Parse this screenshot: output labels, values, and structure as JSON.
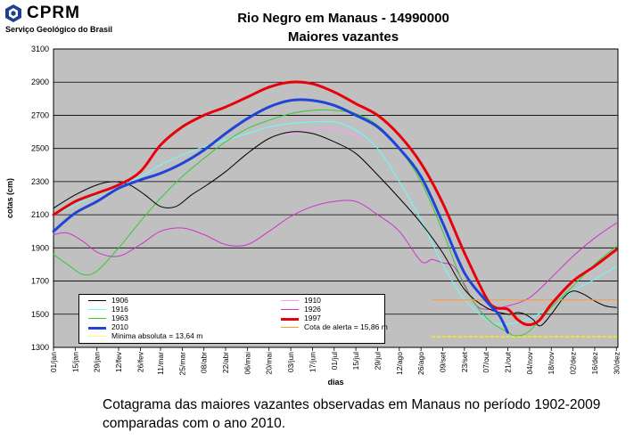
{
  "logo": {
    "name": "CPRM",
    "subtitle": "Serviço Geológico do Brasil"
  },
  "caption": "Cotagrama das maiores vazantes observadas em Manaus no período 1902-2009 comparadas com o ano 2010.",
  "chart_data": {
    "type": "line",
    "title": "Rio Negro em Manaus - 14990000",
    "subtitle": "Maiores vazantes",
    "xlabel": "dias",
    "ylabel": "cotas (cm)",
    "ylim": [
      1300,
      3100
    ],
    "yticks": [
      1300,
      1500,
      1700,
      1900,
      2100,
      2300,
      2500,
      2700,
      2900,
      3100
    ],
    "xlim": [
      1,
      365
    ],
    "xticks": [
      {
        "day": 1,
        "label": "01/jan"
      },
      {
        "day": 15,
        "label": "15/jan"
      },
      {
        "day": 29,
        "label": "29/jan"
      },
      {
        "day": 43,
        "label": "12/fev"
      },
      {
        "day": 57,
        "label": "26/fev"
      },
      {
        "day": 70,
        "label": "11/mar"
      },
      {
        "day": 84,
        "label": "25/mar"
      },
      {
        "day": 98,
        "label": "08/abr"
      },
      {
        "day": 112,
        "label": "22/abr"
      },
      {
        "day": 126,
        "label": "06/mai"
      },
      {
        "day": 140,
        "label": "20/mai"
      },
      {
        "day": 154,
        "label": "03/jun"
      },
      {
        "day": 168,
        "label": "17/jun"
      },
      {
        "day": 182,
        "label": "01/jul"
      },
      {
        "day": 196,
        "label": "15/jul"
      },
      {
        "day": 210,
        "label": "29/jul"
      },
      {
        "day": 224,
        "label": "12/ago"
      },
      {
        "day": 238,
        "label": "26/ago"
      },
      {
        "day": 252,
        "label": "09/set"
      },
      {
        "day": 266,
        "label": "23/set"
      },
      {
        "day": 280,
        "label": "07/out"
      },
      {
        "day": 294,
        "label": "21/out"
      },
      {
        "day": 308,
        "label": "04/nov"
      },
      {
        "day": 322,
        "label": "18/nov"
      },
      {
        "day": 336,
        "label": "02/dez"
      },
      {
        "day": 350,
        "label": "16/dez"
      },
      {
        "day": 364,
        "label": "30/dez"
      }
    ],
    "grid": true,
    "series": [
      {
        "name": "1906",
        "color": "#000000",
        "width": 1,
        "x": [
          1,
          15,
          29,
          40,
          50,
          60,
          70,
          80,
          90,
          100,
          112,
          126,
          140,
          154,
          168,
          182,
          196,
          210,
          224,
          238,
          252,
          266,
          280,
          294,
          300,
          305,
          310,
          315,
          322,
          330,
          336,
          343,
          350,
          357,
          364
        ],
        "y": [
          2140,
          2220,
          2280,
          2300,
          2280,
          2220,
          2150,
          2150,
          2220,
          2280,
          2360,
          2470,
          2560,
          2600,
          2590,
          2540,
          2470,
          2340,
          2200,
          2050,
          1870,
          1650,
          1540,
          1500,
          1510,
          1500,
          1470,
          1430,
          1500,
          1600,
          1640,
          1620,
          1580,
          1550,
          1540
        ]
      },
      {
        "name": "1910",
        "color": "#ff99ff",
        "width": 1,
        "x": [
          150,
          165,
          182,
          200
        ],
        "y": [
          2580,
          2610,
          2620,
          2560
        ]
      },
      {
        "name": "1916",
        "color": "#66ffff",
        "width": 1,
        "x": [
          1,
          15,
          29,
          43,
          57,
          70,
          84,
          98,
          112,
          126,
          140,
          154,
          168,
          182,
          196,
          210,
          224,
          238,
          252,
          266,
          280,
          290,
          300,
          310,
          322,
          336,
          350,
          364
        ],
        "y": [
          2100,
          2160,
          2220,
          2270,
          2330,
          2400,
          2460,
          2510,
          2550,
          2590,
          2630,
          2650,
          2660,
          2660,
          2610,
          2500,
          2300,
          2070,
          1800,
          1590,
          1470,
          1440,
          1450,
          1480,
          1550,
          1640,
          1710,
          1790
        ]
      },
      {
        "name": "1926",
        "color": "#cc33cc",
        "width": 1,
        "x": [
          1,
          10,
          20,
          30,
          43,
          57,
          70,
          84,
          98,
          112,
          126,
          140,
          154,
          168,
          182,
          196,
          210,
          224,
          238,
          245,
          252,
          259,
          266,
          273,
          280,
          294,
          308,
          322,
          336,
          350,
          364
        ],
        "y": [
          1980,
          1990,
          1940,
          1870,
          1850,
          1920,
          2000,
          2020,
          1980,
          1920,
          1920,
          2000,
          2090,
          2150,
          2180,
          2180,
          2100,
          2000,
          1820,
          1830,
          1810,
          1790,
          1680,
          1560,
          1530,
          1550,
          1600,
          1720,
          1850,
          1960,
          2050
        ]
      },
      {
        "name": "1963",
        "color": "#33cc33",
        "width": 1,
        "x": [
          1,
          10,
          20,
          29,
          43,
          57,
          70,
          84,
          98,
          112,
          126,
          140,
          154,
          168,
          182,
          196,
          210,
          224,
          238,
          252,
          266,
          280,
          294,
          300,
          308,
          322,
          336,
          350,
          364
        ],
        "y": [
          1860,
          1800,
          1740,
          1760,
          1900,
          2060,
          2200,
          2330,
          2440,
          2540,
          2620,
          2670,
          2710,
          2730,
          2730,
          2710,
          2640,
          2500,
          2300,
          2000,
          1670,
          1480,
          1390,
          1370,
          1400,
          1540,
          1670,
          1800,
          1910
        ]
      },
      {
        "name": "1997",
        "color": "#e8000b",
        "width": 3,
        "x": [
          1,
          15,
          29,
          43,
          57,
          70,
          84,
          98,
          112,
          126,
          140,
          154,
          168,
          182,
          196,
          210,
          224,
          238,
          252,
          266,
          280,
          286,
          294,
          300,
          305,
          310,
          315,
          322,
          336,
          350,
          364
        ],
        "y": [
          2100,
          2180,
          2230,
          2280,
          2360,
          2520,
          2630,
          2700,
          2750,
          2810,
          2870,
          2900,
          2890,
          2840,
          2770,
          2700,
          2580,
          2410,
          2170,
          1870,
          1600,
          1540,
          1530,
          1470,
          1440,
          1440,
          1470,
          1560,
          1700,
          1790,
          1890
        ]
      },
      {
        "name": "2010",
        "color": "#1f44d6",
        "width": 3,
        "x": [
          1,
          15,
          29,
          43,
          57,
          70,
          84,
          98,
          112,
          126,
          140,
          154,
          168,
          182,
          196,
          210,
          224,
          238,
          252,
          266,
          280,
          288,
          294
        ],
        "y": [
          2000,
          2110,
          2180,
          2260,
          2310,
          2350,
          2410,
          2490,
          2590,
          2680,
          2750,
          2790,
          2790,
          2760,
          2700,
          2630,
          2500,
          2330,
          2050,
          1750,
          1580,
          1500,
          1390
        ]
      },
      {
        "name": "Cota de alerta = 15,86 m",
        "color": "#ff9933",
        "width": 1,
        "dash": "none",
        "x": [
          245,
          364
        ],
        "y": [
          1586,
          1586
        ]
      },
      {
        "name": "Minima absoluta = 13,64 m",
        "color": "#ffee00",
        "width": 1.5,
        "dash": "3,3",
        "x": [
          245,
          364
        ],
        "y": [
          1364,
          1364
        ]
      }
    ],
    "legend": {
      "placement": "bottom-left",
      "entries": [
        "1906",
        "1910",
        "1916",
        "1926",
        "1963",
        "1997",
        "2010",
        "Cota de alerta = 15,86 m",
        "Minima absoluta = 13,64 m"
      ]
    },
    "colors": {
      "plot_background": "#c0c0c0",
      "grid": "#000000"
    }
  }
}
